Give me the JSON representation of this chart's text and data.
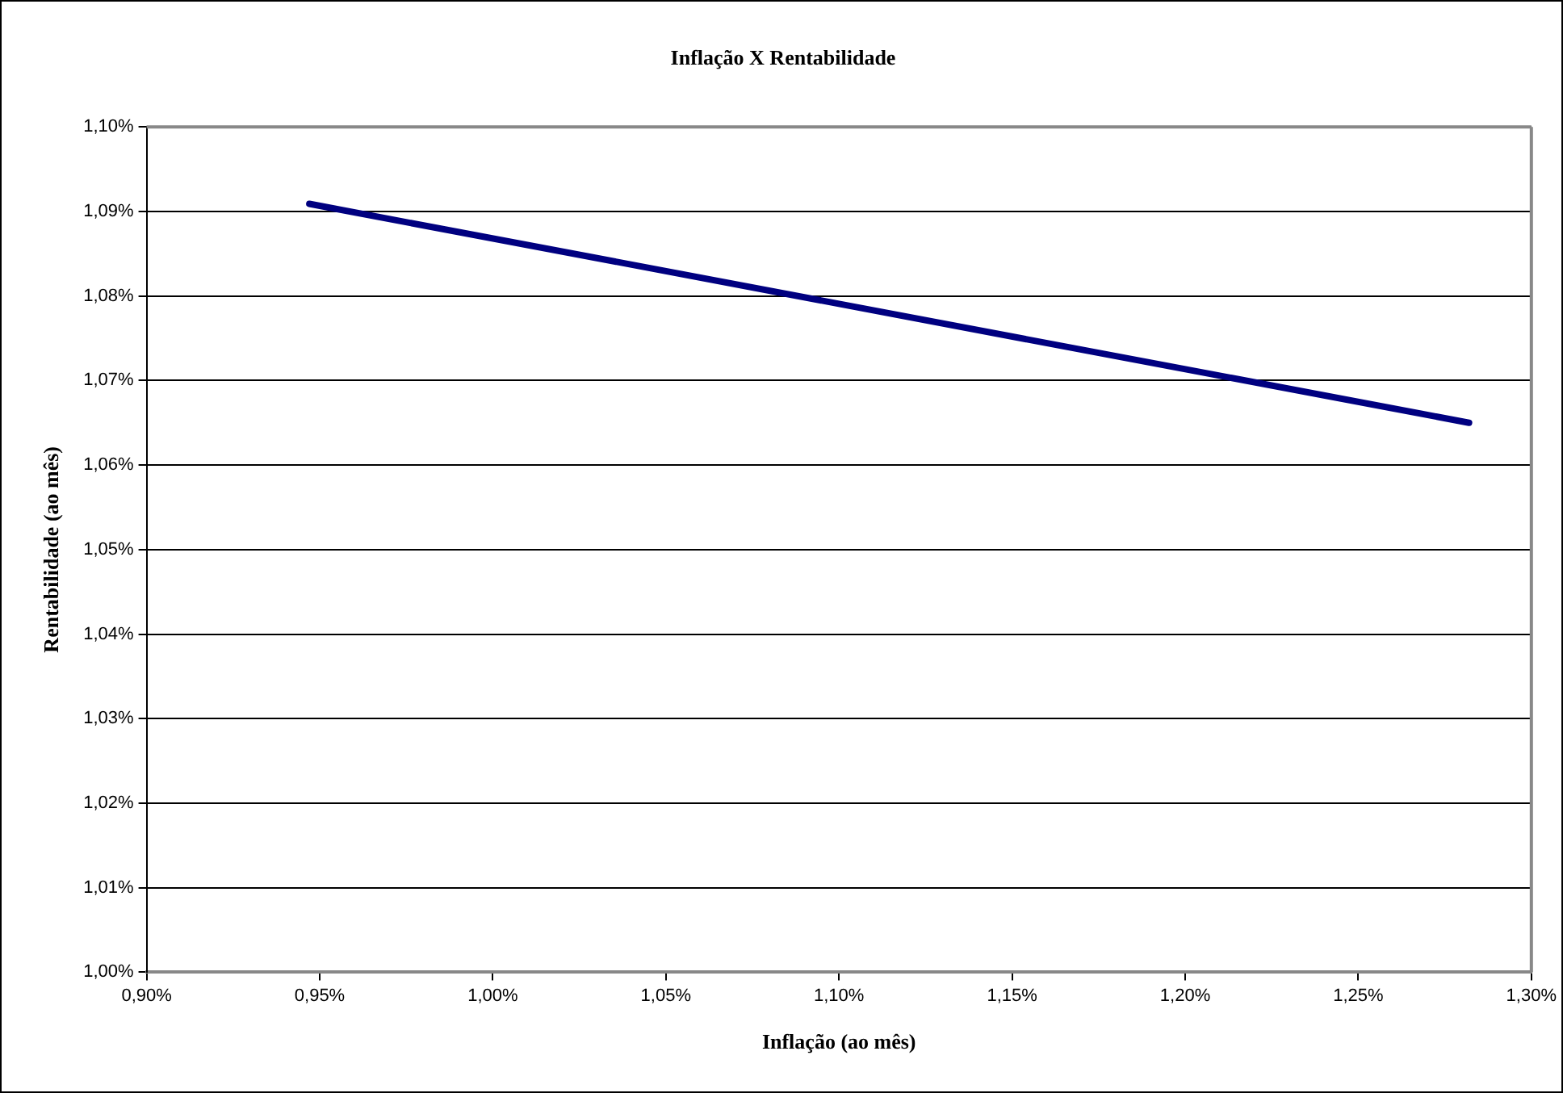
{
  "chart_data": {
    "type": "line",
    "title": "Inflação X Rentabilidade",
    "xlabel": "Inflação (ao mês)",
    "ylabel": "Rentabilidade (ao mês)",
    "x": [
      0.947,
      1.282
    ],
    "series": [
      {
        "color": "#000080",
        "values": [
          1.0909,
          1.065
        ]
      }
    ],
    "xlim": [
      0.9,
      1.3
    ],
    "xticks": [
      {
        "value": 0.9,
        "label": "0,90%"
      },
      {
        "value": 0.95,
        "label": "0,95%"
      },
      {
        "value": 1.0,
        "label": "1,00%"
      },
      {
        "value": 1.05,
        "label": "1,05%"
      },
      {
        "value": 1.1,
        "label": "1,10%"
      },
      {
        "value": 1.15,
        "label": "1,15%"
      },
      {
        "value": 1.2,
        "label": "1,20%"
      },
      {
        "value": 1.25,
        "label": "1,25%"
      },
      {
        "value": 1.3,
        "label": "1,30%"
      }
    ],
    "ylim": [
      1.0,
      1.1
    ],
    "yticks": [
      {
        "value": 1.0,
        "label": "1,00%"
      },
      {
        "value": 1.01,
        "label": "1,01%"
      },
      {
        "value": 1.02,
        "label": "1,02%"
      },
      {
        "value": 1.03,
        "label": "1,03%"
      },
      {
        "value": 1.04,
        "label": "1,04%"
      },
      {
        "value": 1.05,
        "label": "1,05%"
      },
      {
        "value": 1.06,
        "label": "1,06%"
      },
      {
        "value": 1.07,
        "label": "1,07%"
      },
      {
        "value": 1.08,
        "label": "1,08%"
      },
      {
        "value": 1.09,
        "label": "1,09%"
      },
      {
        "value": 1.1,
        "label": "1,10%"
      }
    ],
    "grid": "y",
    "legend": false,
    "marker": "none",
    "line_style": "solid"
  }
}
